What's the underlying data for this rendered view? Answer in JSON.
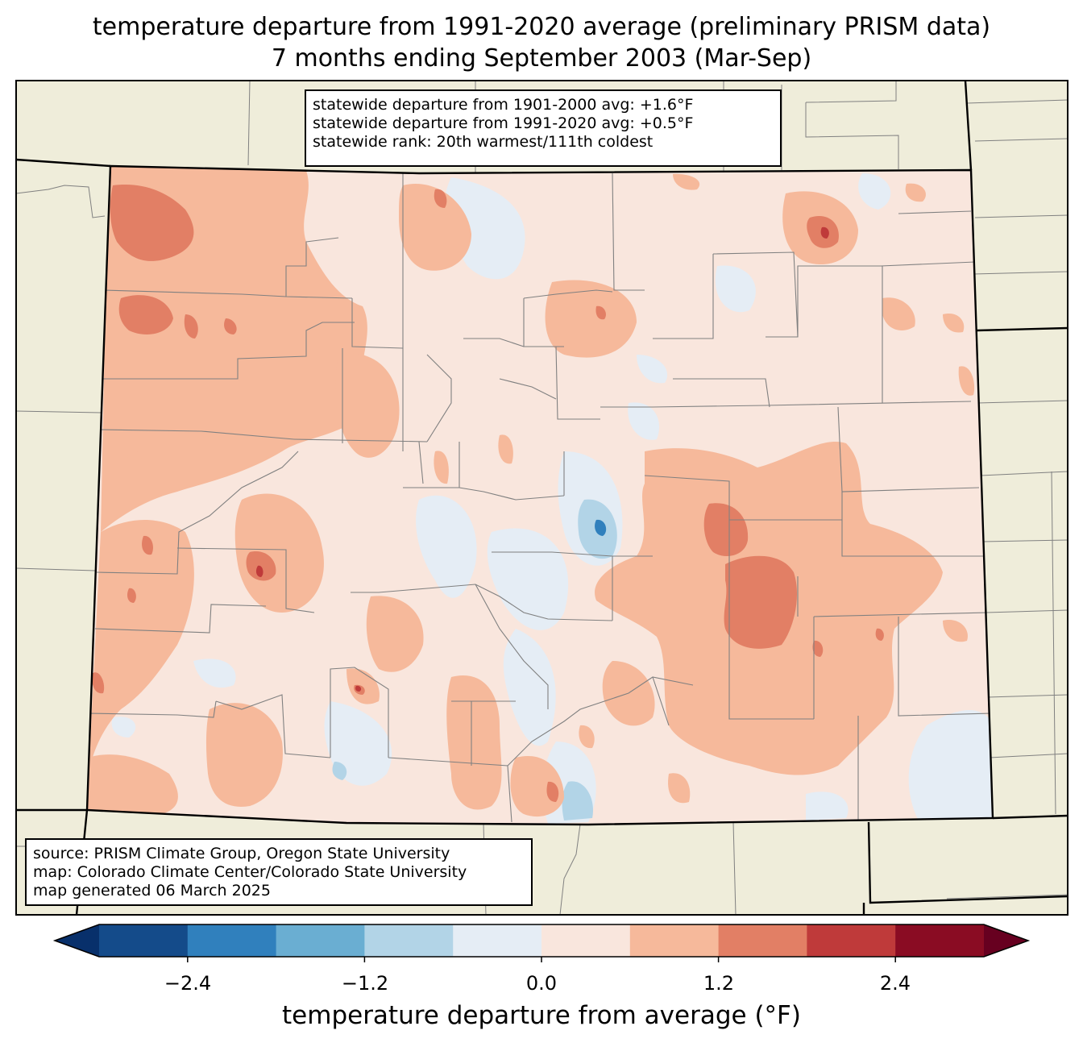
{
  "title": {
    "line1": "temperature departure from 1991-2020 average (preliminary PRISM data)",
    "line2": "7 months ending September 2003 (Mar-Sep)"
  },
  "stats": {
    "line1": "statewide departure from 1901-2000 avg: +1.6°F",
    "line2": "statewide departure from 1991-2020 avg: +0.5°F",
    "line3": "statewide rank: 20th warmest/111th coldest"
  },
  "source": {
    "line1": "source: PRISM Climate Group, Oregon State University",
    "line2": "map: Colorado Climate Center/Colorado State University",
    "line3": "map generated 06 March 2025"
  },
  "colorbar": {
    "label": "temperature departure from average (°F)",
    "ticks": [
      "−2.4",
      "−1.2",
      "0.0",
      "1.2",
      "2.4"
    ],
    "bin_edges": [
      -3.0,
      -2.4,
      -1.8,
      -1.2,
      -0.6,
      0.0,
      0.6,
      1.2,
      1.8,
      2.4,
      3.0
    ],
    "colors": [
      "#08306b",
      "#144b8a",
      "#3080bd",
      "#6aaed2",
      "#b2d4e7",
      "#e5edf5",
      "#f9e6dd",
      "#f6b99b",
      "#e27f65",
      "#bf3a3a",
      "#8a0c23",
      "#670020"
    ]
  },
  "map_colors": {
    "land_outside": "#efedda",
    "state_border": "#000000",
    "county_border": "#808080"
  }
}
